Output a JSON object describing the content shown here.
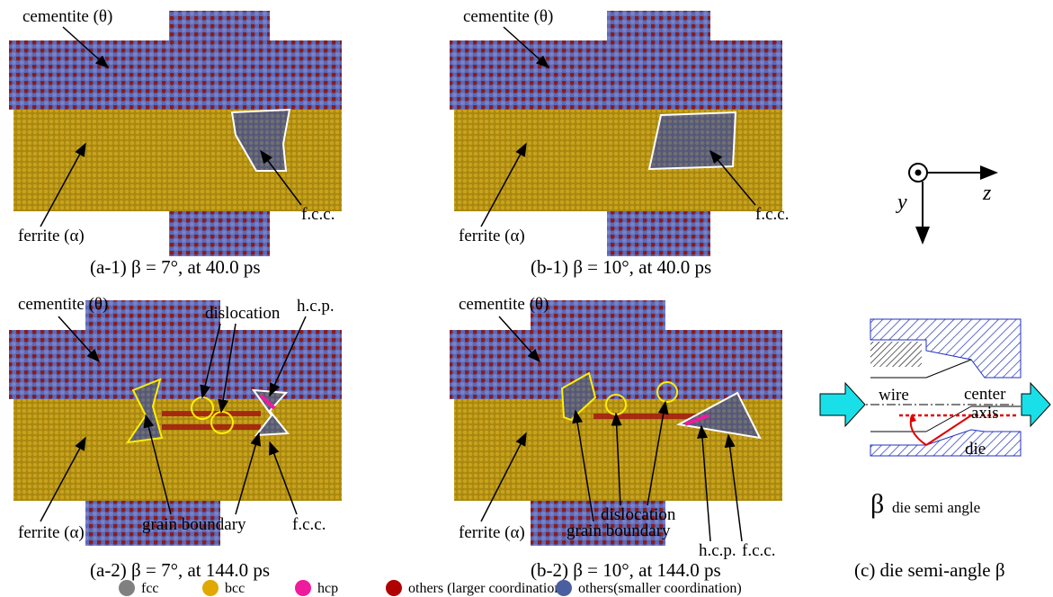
{
  "panels": [
    {
      "caption": "(a-1) β = 7°, at 40.0 ps",
      "labels": [
        "cementite (θ)",
        "ferrite (α)",
        "f.c.c."
      ]
    },
    {
      "caption": "(b-1) β = 10°, at 40.0 ps",
      "labels": [
        "cementite (θ)",
        "ferrite (α)",
        "f.c.c."
      ]
    },
    {
      "caption": "(a-2) β = 7°, at 144.0 ps",
      "labels": [
        "cementite (θ)",
        "dislocation",
        "h.c.p.",
        "grain boundary",
        "f.c.c.",
        "ferrite (α)"
      ]
    },
    {
      "caption": "(b-2) β = 10°, at 144.0 ps",
      "labels": [
        "cementite (θ)",
        "grain boundary",
        "dislocation",
        "h.c.p.",
        "f.c.c.",
        "ferrite (α)"
      ]
    }
  ],
  "axes": {
    "y": "y",
    "z": "z"
  },
  "die": {
    "caption": "(c) die semi-angle β",
    "wire": "wire",
    "center": "center",
    "axis": "axis",
    "die": "die",
    "beta": "β",
    "semi_angle": "die semi angle"
  },
  "legend": [
    {
      "label": "fcc",
      "color": "#808080"
    },
    {
      "label": "bcc",
      "color": "#e0a800"
    },
    {
      "label": "hcp",
      "color": "#ee1b9c"
    },
    {
      "label": "others (larger coordination)",
      "color": "#b00000"
    },
    {
      "label": "others(smaller coordination)",
      "color": "#4a5fa0"
    }
  ]
}
